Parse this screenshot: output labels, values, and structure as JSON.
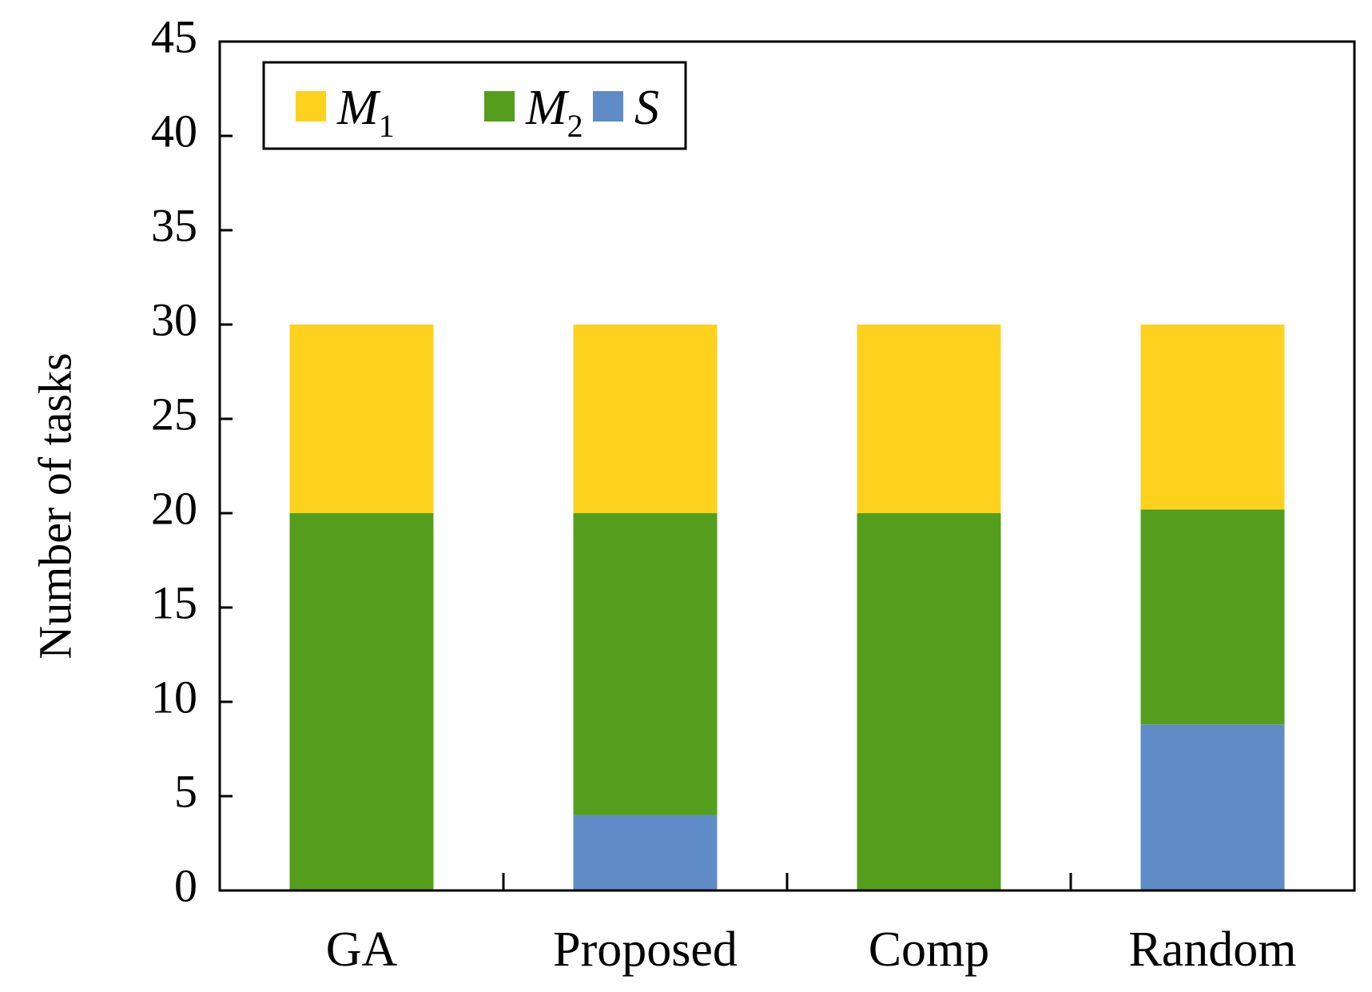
{
  "chart_data": {
    "type": "bar",
    "stacked": true,
    "title": "",
    "xlabel": "",
    "ylabel": "Number of tasks",
    "ylim": [
      0,
      45
    ],
    "yticks": [
      0,
      5,
      10,
      15,
      20,
      25,
      30,
      35,
      40,
      45
    ],
    "categories": [
      "GA",
      "Proposed",
      "Comp",
      "Random"
    ],
    "series": [
      {
        "name": "S",
        "label_main": "S",
        "label_sub": "",
        "color": "#5f8bc6",
        "values": [
          0,
          4,
          0,
          8.8
        ]
      },
      {
        "name": "M2",
        "label_main": "M",
        "label_sub": "2",
        "color": "#559e1d",
        "values": [
          20,
          16,
          20,
          11.4
        ]
      },
      {
        "name": "M1",
        "label_main": "M",
        "label_sub": "1",
        "color": "#fdd21f",
        "values": [
          10,
          10,
          10,
          9.8
        ]
      }
    ],
    "legend": {
      "position": "top-left",
      "order": [
        "M1",
        "M2",
        "S"
      ]
    },
    "grid": false
  }
}
